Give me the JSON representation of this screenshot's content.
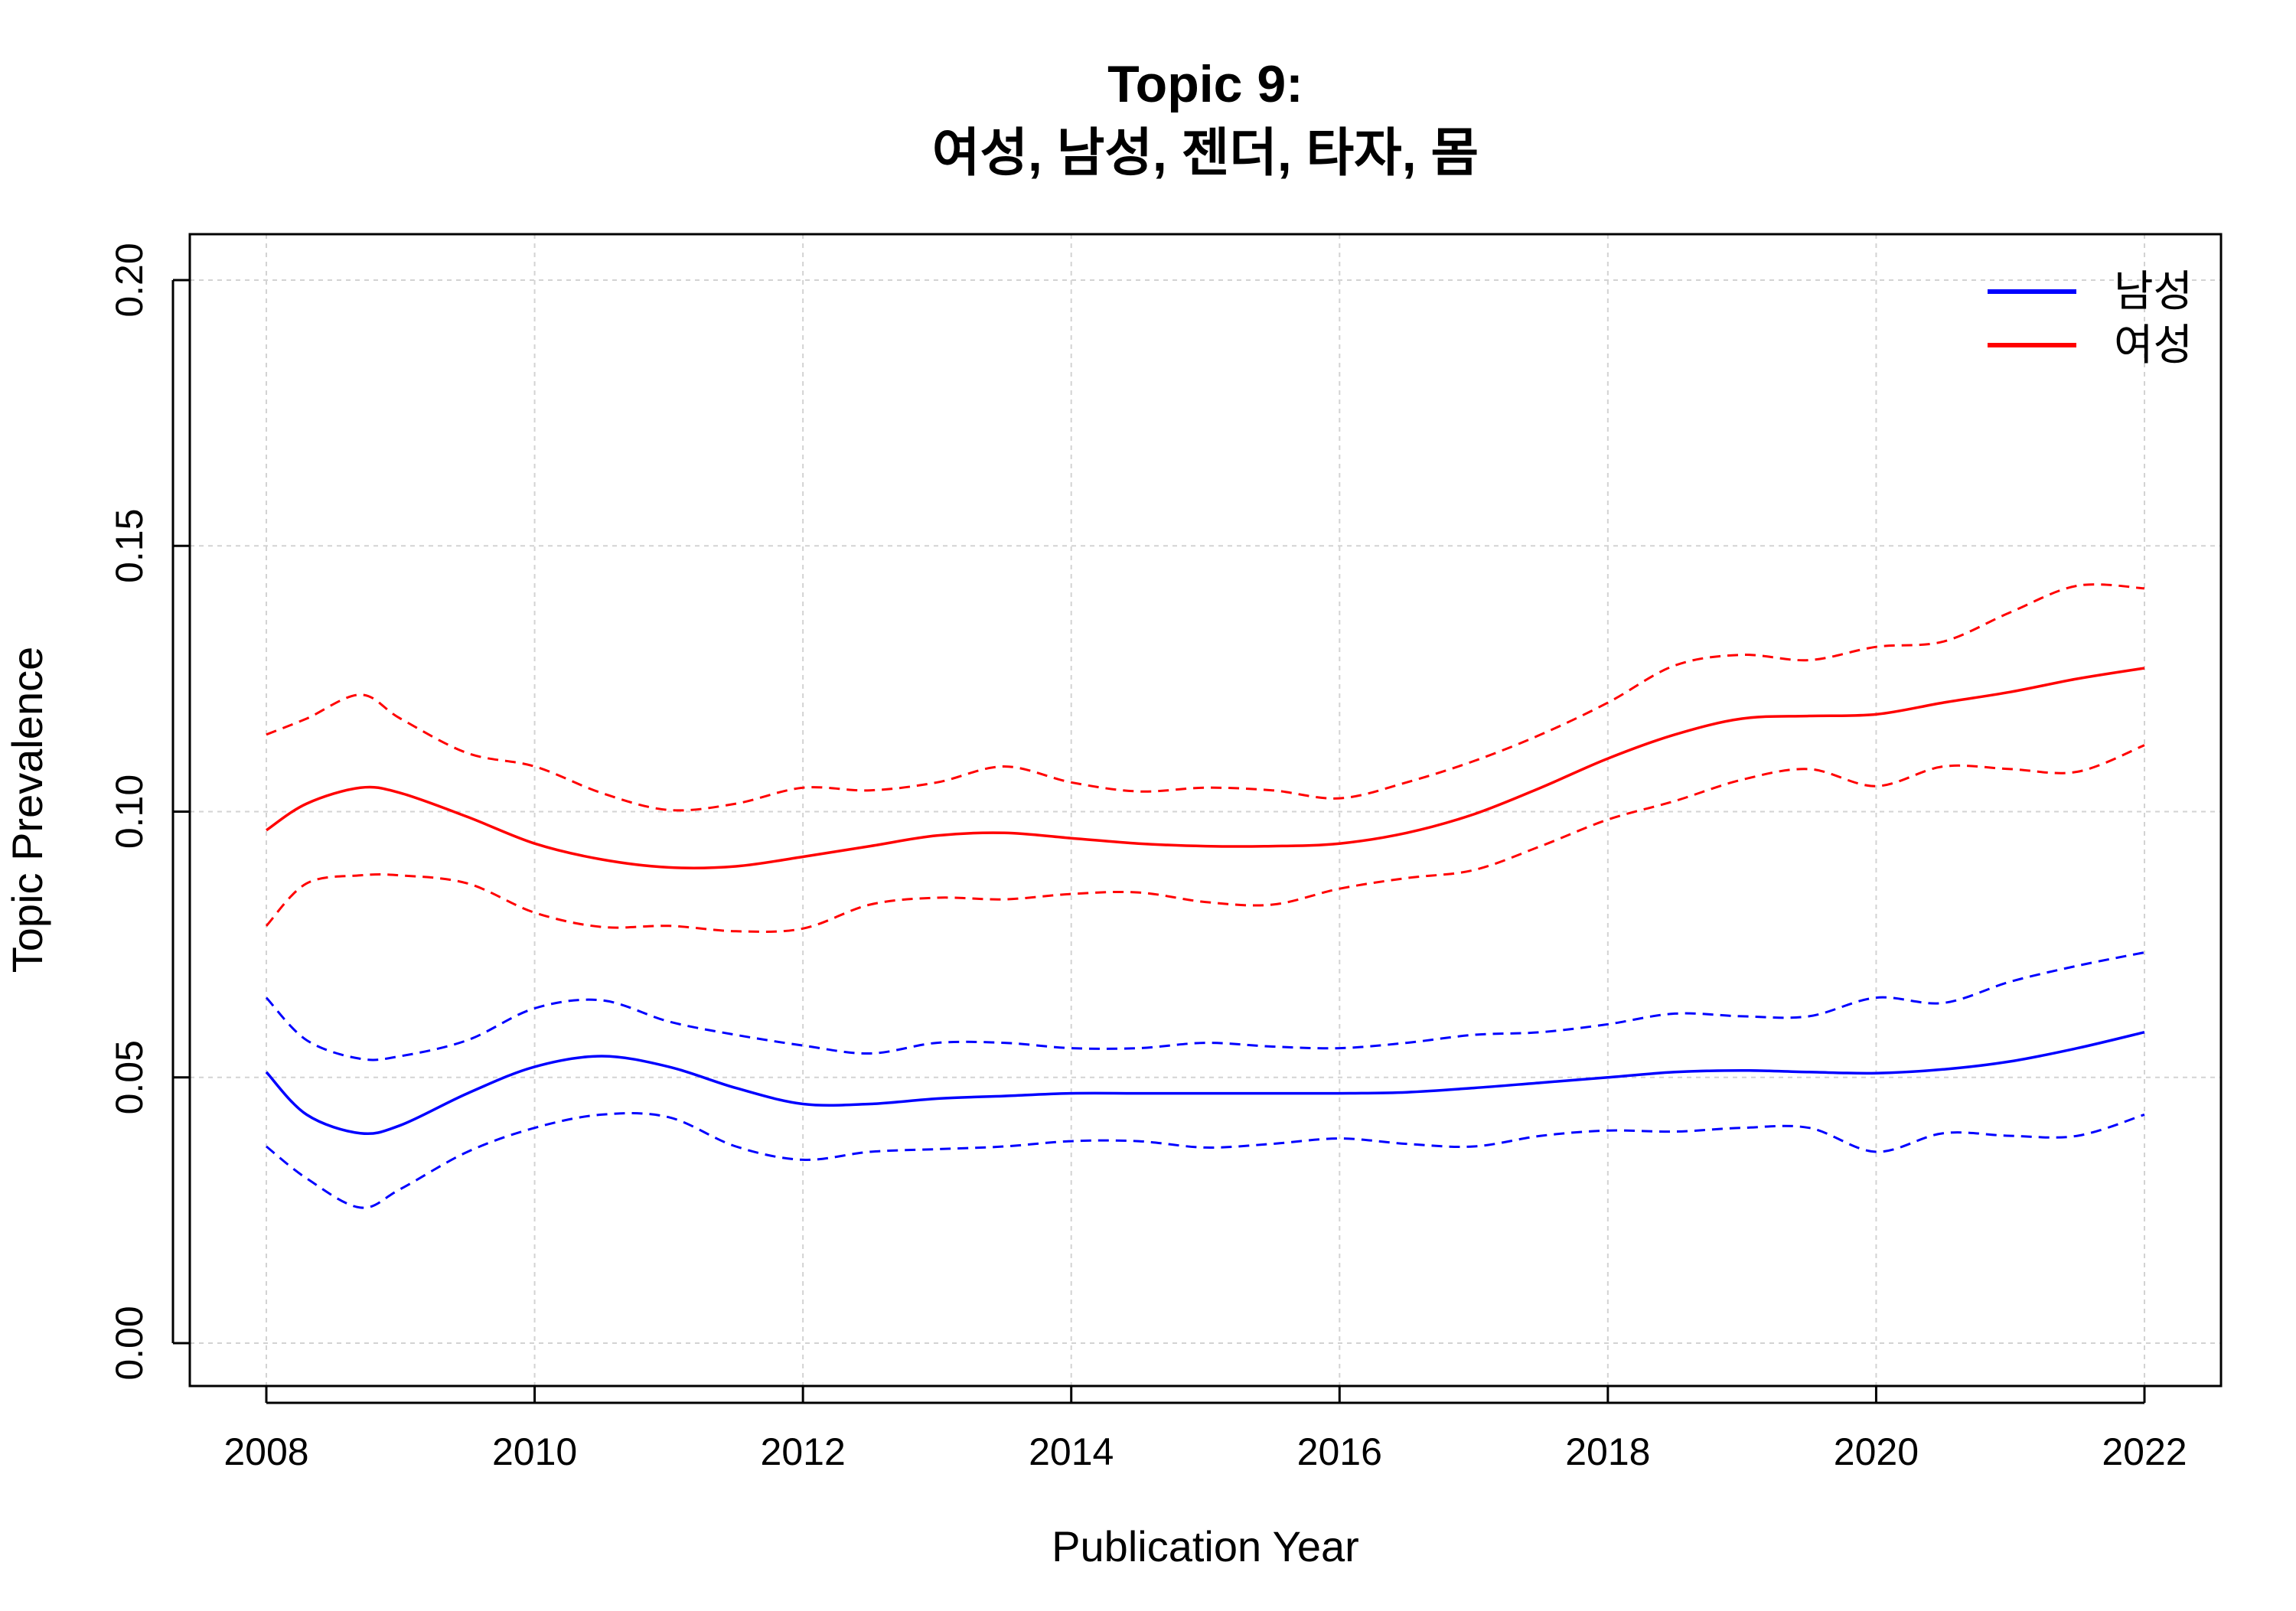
{
  "chart_data": {
    "type": "line",
    "title": "Topic 9:",
    "subtitle": "여성, 남성, 젠더, 타자, 몸",
    "xlabel": "Publication Year",
    "ylabel": "Topic Prevalence",
    "xlim": [
      2008,
      2022
    ],
    "ylim": [
      0,
      0.2
    ],
    "x_ticks": [
      "2008",
      "2010",
      "2012",
      "2014",
      "2016",
      "2018",
      "2020",
      "2022"
    ],
    "y_ticks": [
      "0.00",
      "0.05",
      "0.10",
      "0.15",
      "0.20"
    ],
    "grid": true,
    "legend_position": "top-right",
    "x": [
      2008,
      2008.3,
      2008.7,
      2009,
      2009.5,
      2010,
      2010.5,
      2011,
      2011.5,
      2012,
      2012.5,
      2013,
      2013.5,
      2014,
      2014.5,
      2015,
      2015.5,
      2016,
      2016.5,
      2017,
      2017.5,
      2018,
      2018.5,
      2019,
      2019.5,
      2020,
      2020.5,
      2021,
      2021.5,
      2022
    ],
    "series": [
      {
        "name": "남성",
        "color": "#0000ff",
        "values": [
          0.051,
          0.043,
          0.0395,
          0.041,
          0.047,
          0.052,
          0.054,
          0.052,
          0.048,
          0.045,
          0.045,
          0.046,
          0.0465,
          0.047,
          0.047,
          0.047,
          0.047,
          0.047,
          0.0472,
          0.048,
          0.049,
          0.05,
          0.051,
          0.0513,
          0.051,
          0.0508,
          0.0515,
          0.053,
          0.0555,
          0.0585
        ],
        "lower": [
          0.037,
          0.031,
          0.0255,
          0.029,
          0.036,
          0.0405,
          0.043,
          0.0425,
          0.037,
          0.0345,
          0.036,
          0.0365,
          0.037,
          0.038,
          0.038,
          0.0368,
          0.0375,
          0.0385,
          0.0375,
          0.037,
          0.039,
          0.04,
          0.0398,
          0.0405,
          0.0405,
          0.036,
          0.0395,
          0.039,
          0.039,
          0.043
        ],
        "upper": [
          0.065,
          0.057,
          0.0535,
          0.054,
          0.057,
          0.063,
          0.0645,
          0.0605,
          0.058,
          0.056,
          0.0545,
          0.0565,
          0.0565,
          0.0555,
          0.0555,
          0.0565,
          0.0558,
          0.0555,
          0.0565,
          0.058,
          0.0585,
          0.06,
          0.062,
          0.0615,
          0.0615,
          0.065,
          0.064,
          0.068,
          0.071,
          0.0735
        ]
      },
      {
        "name": "여성",
        "color": "#ff0000",
        "values": [
          0.0965,
          0.1015,
          0.1045,
          0.1035,
          0.099,
          0.094,
          0.091,
          0.0895,
          0.0897,
          0.0915,
          0.0935,
          0.0955,
          0.096,
          0.095,
          0.094,
          0.0935,
          0.0935,
          0.094,
          0.096,
          0.0995,
          0.1045,
          0.11,
          0.1145,
          0.1175,
          0.118,
          0.1183,
          0.1205,
          0.1225,
          0.125,
          0.127
        ],
        "lower": [
          0.0785,
          0.0865,
          0.088,
          0.088,
          0.0865,
          0.081,
          0.0783,
          0.0785,
          0.0775,
          0.078,
          0.0825,
          0.0838,
          0.0835,
          0.0845,
          0.0848,
          0.083,
          0.0825,
          0.0855,
          0.0875,
          0.089,
          0.0935,
          0.0985,
          0.102,
          0.106,
          0.108,
          0.1048,
          0.1085,
          0.108,
          0.1075,
          0.1125
        ],
        "upper": [
          0.1145,
          0.1175,
          0.122,
          0.1175,
          0.111,
          0.1085,
          0.1035,
          0.1003,
          0.1015,
          0.1045,
          0.104,
          0.1055,
          0.1085,
          0.1055,
          0.1038,
          0.1045,
          0.104,
          0.1025,
          0.1055,
          0.1095,
          0.1145,
          0.1205,
          0.1275,
          0.1295,
          0.1285,
          0.131,
          0.132,
          0.1375,
          0.1425,
          0.142
        ]
      }
    ]
  }
}
